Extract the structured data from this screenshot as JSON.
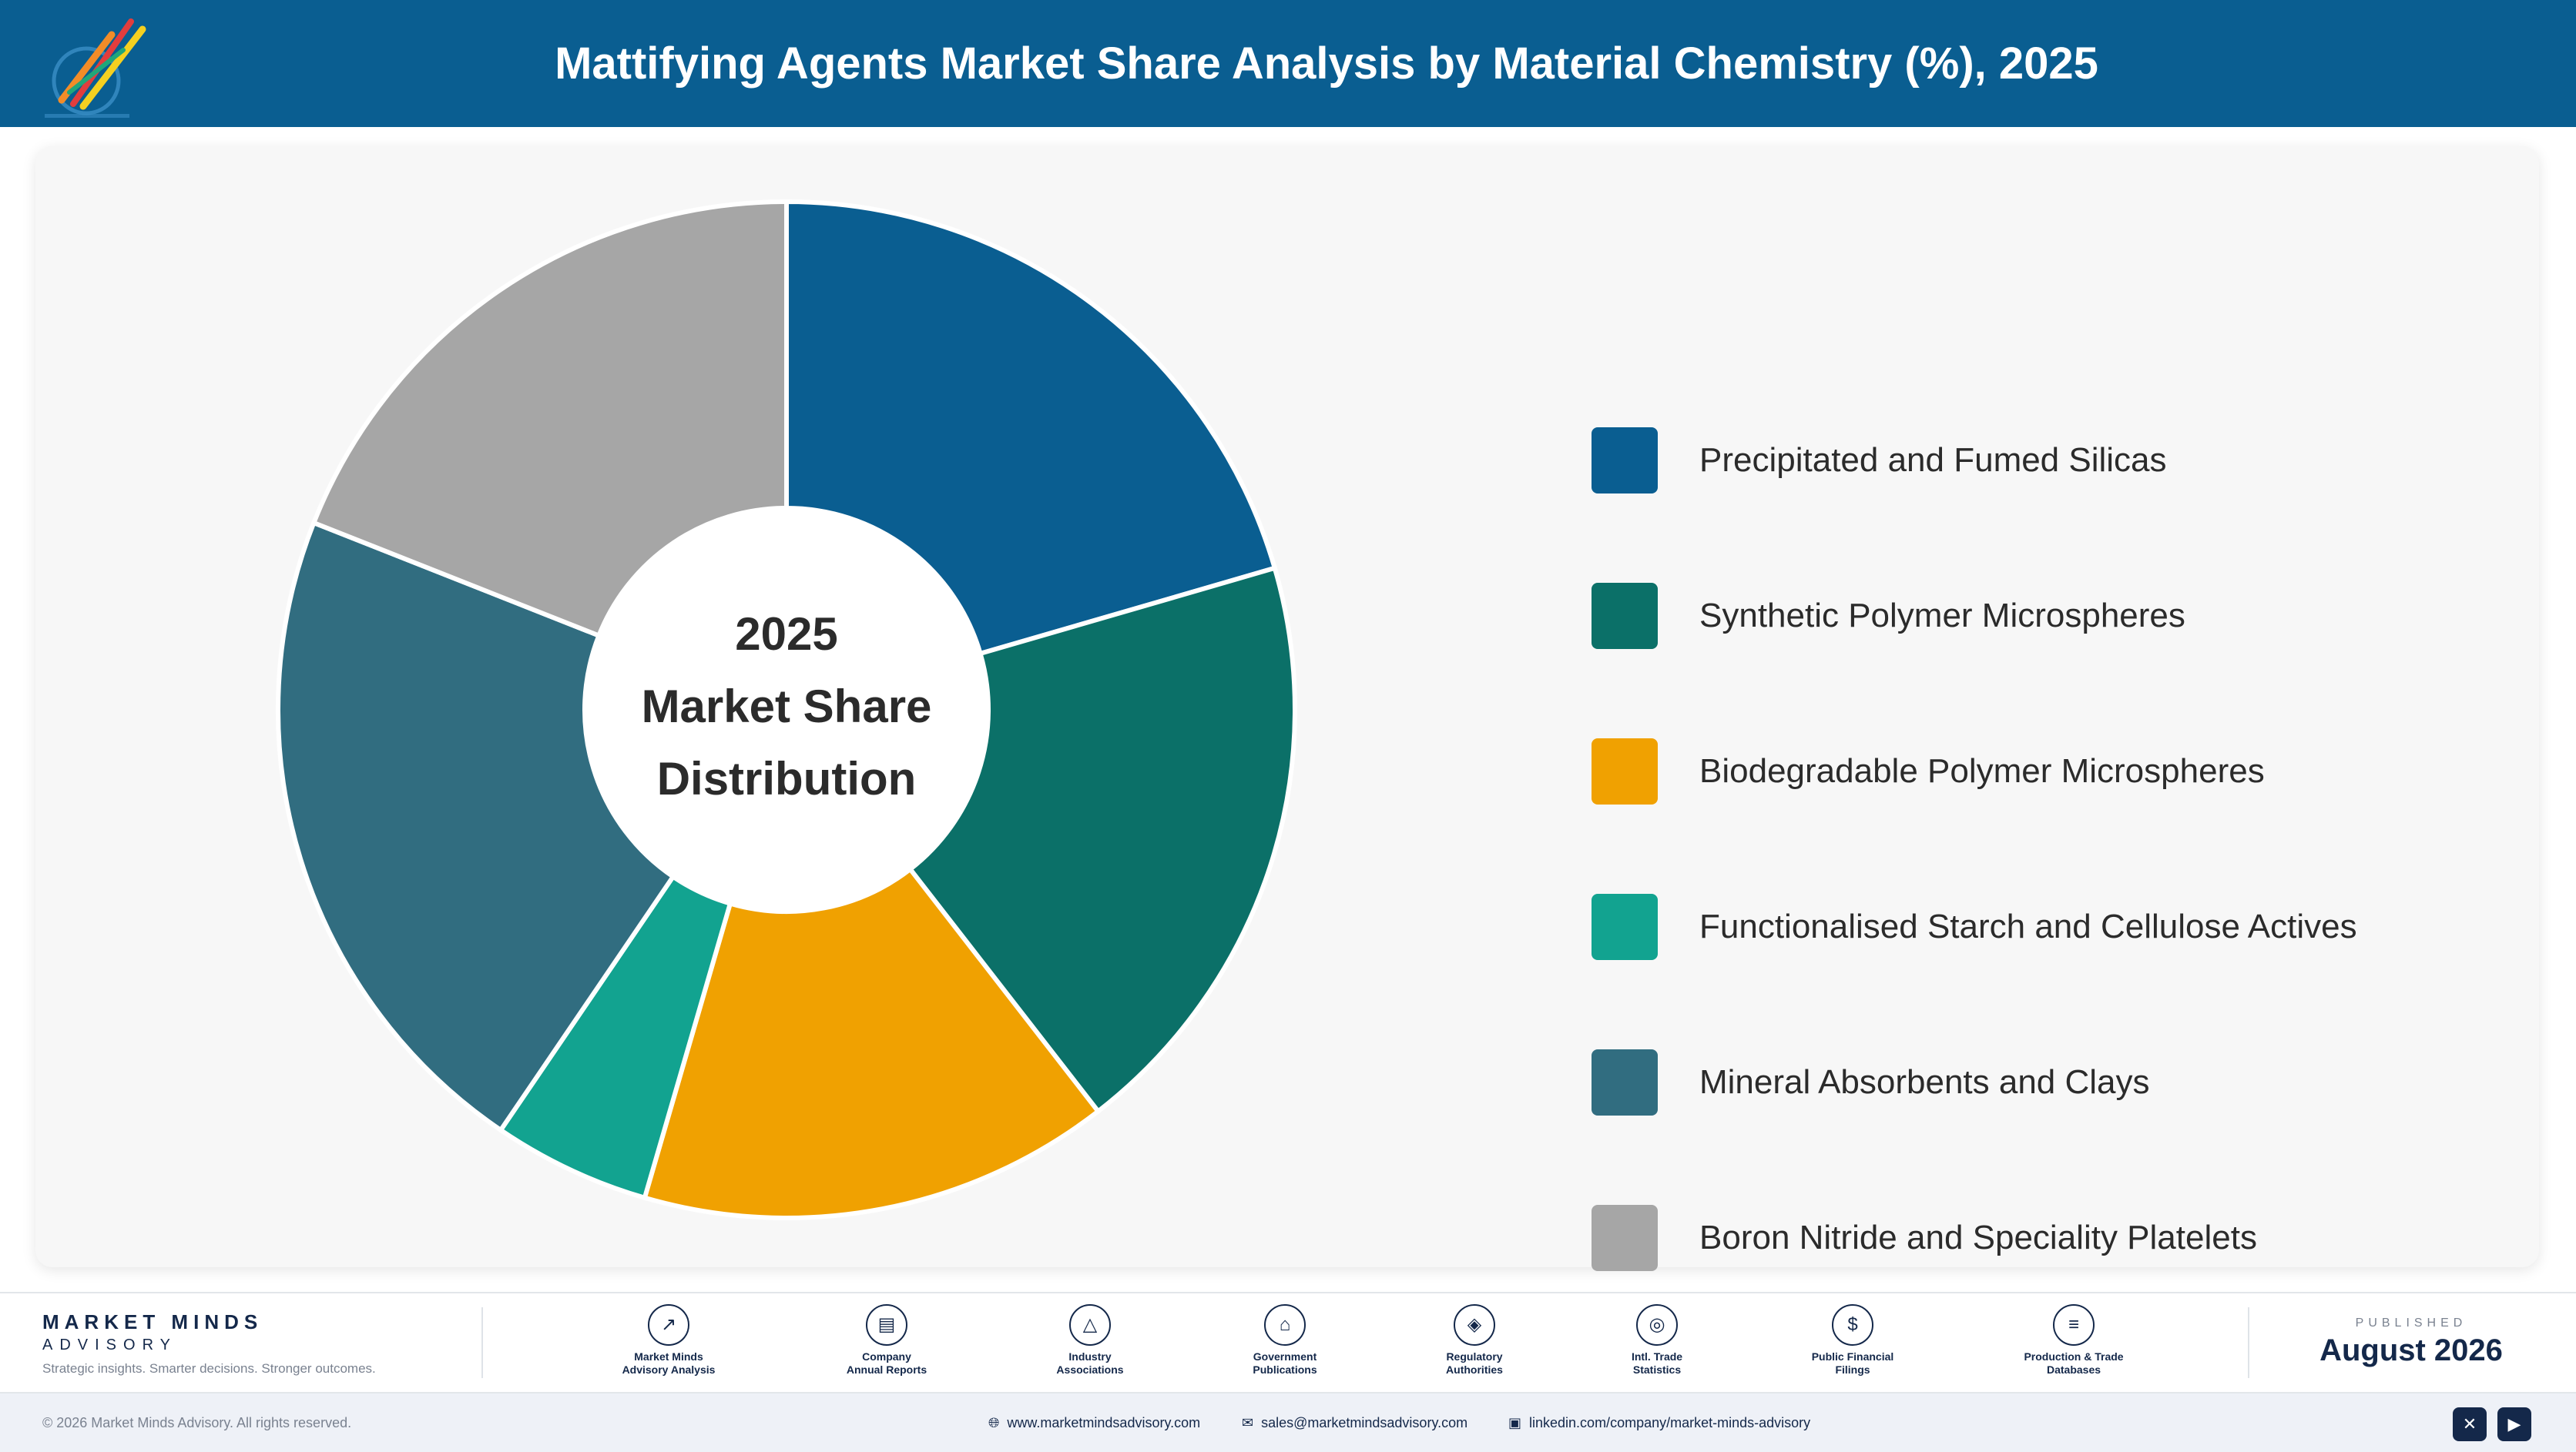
{
  "header": {
    "title": "Mattifying Agents Market Share Analysis by Material Chemistry (%), 2025"
  },
  "chart_data": {
    "type": "pie",
    "donut": true,
    "title": "Mattifying Agents Market Share Analysis by Material Chemistry (%), 2025",
    "center_label": [
      "2025",
      "Market Share",
      "Distribution"
    ],
    "legend_position": "right",
    "categories": [
      "Precipitated and Fumed Silicas",
      "Synthetic Polymer Microspheres",
      "Biodegradable Polymer Microspheres",
      "Functionalised Starch and Cellulose Actives",
      "Mineral Absorbents and Clays",
      "Boron Nitride and Speciality Platelets"
    ],
    "values": [
      20.5,
      19,
      15,
      5,
      21.5,
      19
    ],
    "colors": [
      "#0a5e91",
      "#0b7068",
      "#f0a101",
      "#12a390",
      "#316d80",
      "#a6a6a6"
    ]
  },
  "footer": {
    "brand_name": "MARKET MINDS",
    "brand_sub": "ADVISORY",
    "brand_tagline": "Strategic insights. Smarter decisions. Stronger outcomes.",
    "sources": [
      {
        "icon": "chart-line-icon",
        "label": "Market Minds\nAdvisory Analysis"
      },
      {
        "icon": "document-icon",
        "label": "Company\nAnnual Reports"
      },
      {
        "icon": "network-icon",
        "label": "Industry\nAssociations"
      },
      {
        "icon": "government-building-icon",
        "label": "Government\nPublications"
      },
      {
        "icon": "shield-icon",
        "label": "Regulatory\nAuthorities"
      },
      {
        "icon": "globe-icon",
        "label": "Intl. Trade\nStatistics"
      },
      {
        "icon": "dollar-coin-icon",
        "label": "Public Financial\nFilings"
      },
      {
        "icon": "database-icon",
        "label": "Production & Trade\nDatabases"
      }
    ],
    "published_label": "PUBLISHED",
    "published_date": "August 2026",
    "copyright": "© 2026 Market Minds Advisory. All rights reserved.",
    "website": "www.marketmindsadvisory.com",
    "email": "sales@marketmindsadvisory.com",
    "linkedin": "linkedin.com/company/market-minds-advisory",
    "social": [
      {
        "icon": "x-twitter-icon",
        "glyph": "✕"
      },
      {
        "icon": "youtube-icon",
        "glyph": "▶"
      }
    ]
  }
}
